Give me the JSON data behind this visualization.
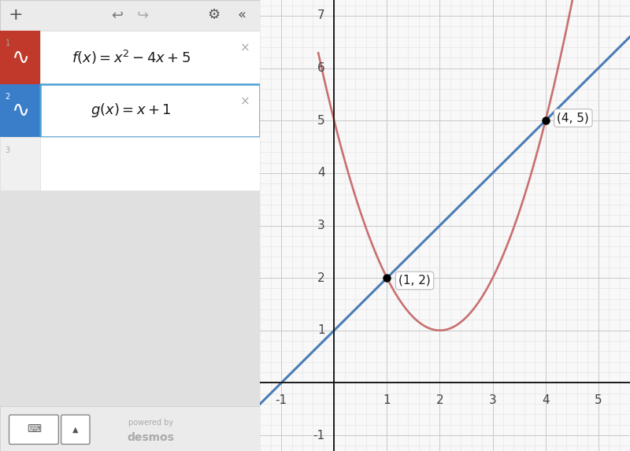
{
  "xlim": [
    -1.4,
    5.6
  ],
  "ylim": [
    -1.3,
    7.3
  ],
  "xticks": [
    -1,
    0,
    1,
    2,
    3,
    4,
    5
  ],
  "yticks": [
    -1,
    0,
    1,
    2,
    3,
    4,
    5,
    6,
    7
  ],
  "x_label_ticks": [
    -1,
    1,
    2,
    3,
    4,
    5
  ],
  "y_label_ticks": [
    -1,
    1,
    2,
    3,
    4,
    5,
    6,
    7
  ],
  "grid_color": "#c8c8c8",
  "minor_grid_color": "#e2e2e2",
  "background_color": "#f8f8f8",
  "parabola_color": "#c87070",
  "line_color": "#4a7db5",
  "point1": [
    1,
    2
  ],
  "point2": [
    4,
    5
  ],
  "label1": "(1, 2)",
  "label2": "(4, 5)",
  "panel_bg": "#ffffff",
  "panel_border": "#dddddd",
  "toolbar_bg": "#ebebeb",
  "toolbar_border": "#cccccc",
  "icon1_bg": "#c0392b",
  "icon2_bg": "#3a7dc9",
  "row_border_selected": "#4a9fd4",
  "f_label": "$f(x) = x^2 - 4x + 5$",
  "g_label": "$g(x) = x + 1$",
  "desmos_text_1": "powered by",
  "desmos_text_2": "desmos",
  "fig_bg": "#e0e0e0"
}
